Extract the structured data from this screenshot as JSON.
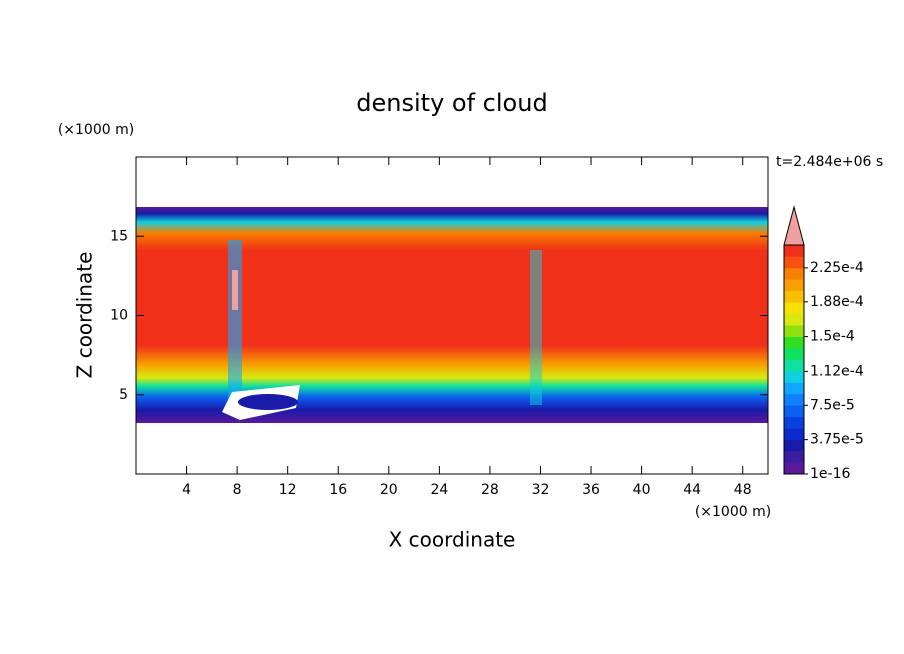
{
  "chart_data": {
    "type": "contour",
    "title": "density of cloud",
    "xlabel": "X coordinate",
    "ylabel": "Z coordinate",
    "x_unit": "(×1000 m)",
    "y_unit": "(×1000 m)",
    "annotation": "t=2.484e+06 s",
    "xlim": [
      0,
      50
    ],
    "xticks": [
      4,
      8,
      12,
      16,
      20,
      24,
      28,
      32,
      36,
      40,
      44,
      48
    ],
    "ylim": [
      0,
      20
    ],
    "yticks": [
      5,
      10,
      15
    ],
    "colorbar": {
      "clim": [
        1e-16,
        0.00025
      ],
      "ticks": [
        1e-16,
        {
          "value": 3.75e-05,
          "label": "3.75e-5"
        },
        {
          "value": 7.5e-05,
          "label": "7.5e-5"
        },
        {
          "value": 0.000112,
          "label": "1.12e-4"
        },
        {
          "value": 0.00015,
          "label": "1.5e-4"
        },
        {
          "value": 0.000188,
          "label": "1.88e-4"
        },
        {
          "value": 0.000225,
          "label": "2.25e-4"
        }
      ],
      "colors": [
        "#5a189a",
        "#3a1c9e",
        "#1a1aa8",
        "#0a2acc",
        "#0a40e0",
        "#0a60f0",
        "#1080ff",
        "#10a8ff",
        "#10d0e0",
        "#10e0a0",
        "#10e060",
        "#30e020",
        "#90e010",
        "#d8e810",
        "#f8e000",
        "#f8c000",
        "#f8a000",
        "#f88000",
        "#f85010",
        "#f03018"
      ],
      "extend_color": "#f0a0a0"
    }
  }
}
